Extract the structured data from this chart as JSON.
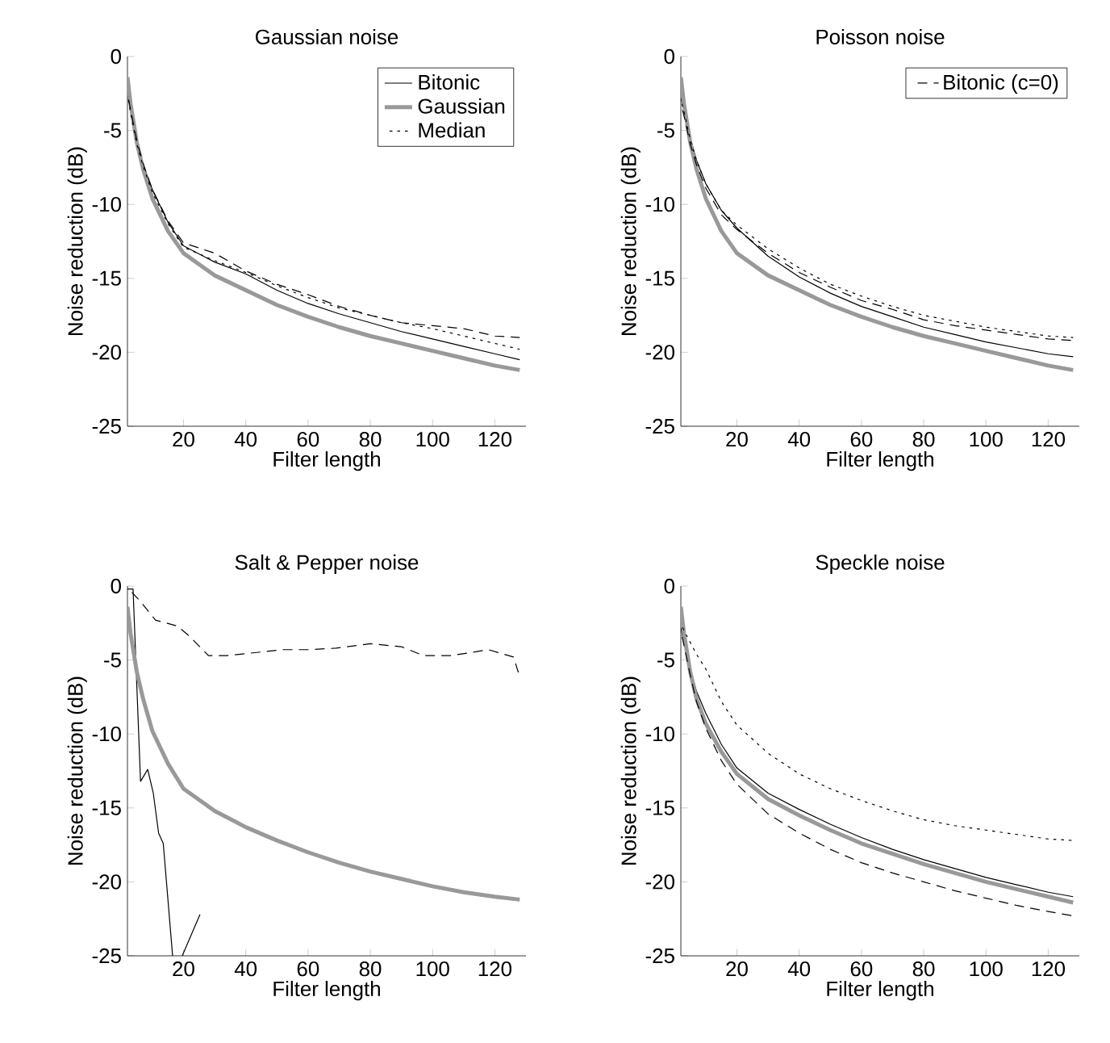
{
  "chart_data": [
    {
      "type": "line",
      "title": "Gaussian noise",
      "xlabel": "Filter length",
      "ylabel": "Noise reduction (dB)",
      "xlim": [
        2,
        130
      ],
      "ylim": [
        -25,
        0
      ],
      "xticks": [
        20,
        40,
        60,
        80,
        100,
        120
      ],
      "yticks": [
        -25,
        -20,
        -15,
        -10,
        -5,
        0
      ],
      "legend": "top right",
      "series": [
        {
          "name": "Bitonic",
          "color": "#000000",
          "line_style": "solid",
          "x": [
            2,
            3,
            5,
            7,
            10,
            15,
            20,
            30,
            40,
            50,
            60,
            70,
            80,
            90,
            100,
            110,
            120,
            128
          ],
          "values": [
            -2.5,
            -3.6,
            -5.8,
            -7.3,
            -9.0,
            -11.2,
            -12.8,
            -13.9,
            -14.7,
            -15.8,
            -16.7,
            -17.4,
            -18.0,
            -18.6,
            -19.1,
            -19.6,
            -20.1,
            -20.5
          ]
        },
        {
          "name": "Gaussian",
          "color": "#999999",
          "line_style": "solid",
          "x": [
            2,
            3,
            5,
            7,
            10,
            15,
            20,
            30,
            40,
            50,
            60,
            70,
            80,
            90,
            100,
            110,
            120,
            128
          ],
          "values": [
            -1.4,
            -3.2,
            -5.8,
            -7.6,
            -9.6,
            -11.8,
            -13.3,
            -14.8,
            -15.8,
            -16.8,
            -17.6,
            -18.3,
            -18.9,
            -19.4,
            -19.9,
            -20.4,
            -20.9,
            -21.2
          ]
        },
        {
          "name": "Median",
          "color": "#000000",
          "line_style": "dotted",
          "x": [
            2,
            3,
            5,
            7,
            10,
            15,
            20,
            30,
            40,
            50,
            60,
            70,
            80,
            90,
            100,
            110,
            120,
            128
          ],
          "values": [
            -2.6,
            -3.8,
            -5.9,
            -7.4,
            -9.2,
            -11.3,
            -12.9,
            -13.8,
            -14.6,
            -15.5,
            -16.3,
            -17.0,
            -17.5,
            -18.0,
            -18.4,
            -18.9,
            -19.4,
            -19.8
          ]
        },
        {
          "color": "#000000",
          "line_style": "dashed",
          "x": [
            2,
            3,
            5,
            7,
            10,
            15,
            20,
            30,
            40,
            50,
            60,
            70,
            80,
            90,
            100,
            110,
            120,
            128
          ],
          "values": [
            -2.5,
            -3.6,
            -5.7,
            -7.2,
            -9.0,
            -11.1,
            -12.6,
            -13.3,
            -14.5,
            -15.4,
            -16.1,
            -16.9,
            -17.5,
            -18.0,
            -18.2,
            -18.4,
            -18.9,
            -19.0
          ]
        }
      ]
    },
    {
      "type": "line",
      "title": "Poisson noise",
      "xlabel": "Filter length",
      "ylabel": "Noise reduction (dB)",
      "xlim": [
        2,
        130
      ],
      "ylim": [
        -25,
        0
      ],
      "xticks": [
        20,
        40,
        60,
        80,
        100,
        120
      ],
      "yticks": [
        -25,
        -20,
        -15,
        -10,
        -5,
        0
      ],
      "legend": "top right",
      "series": [
        {
          "color": "#000000",
          "line_style": "solid",
          "x": [
            2,
            3,
            5,
            7,
            10,
            15,
            20,
            30,
            40,
            50,
            60,
            70,
            80,
            90,
            100,
            110,
            120,
            128
          ],
          "values": [
            -2.8,
            -3.6,
            -5.5,
            -7.0,
            -8.6,
            -10.4,
            -11.6,
            -13.5,
            -14.9,
            -16.0,
            -16.9,
            -17.6,
            -18.3,
            -18.8,
            -19.3,
            -19.7,
            -20.1,
            -20.3
          ]
        },
        {
          "color": "#999999",
          "line_style": "solid",
          "x": [
            2,
            3,
            5,
            7,
            10,
            15,
            20,
            30,
            40,
            50,
            60,
            70,
            80,
            90,
            100,
            110,
            120,
            128
          ],
          "values": [
            -1.4,
            -3.2,
            -5.8,
            -7.6,
            -9.6,
            -11.8,
            -13.3,
            -14.8,
            -15.8,
            -16.8,
            -17.6,
            -18.3,
            -18.9,
            -19.4,
            -19.9,
            -20.4,
            -20.9,
            -21.2
          ]
        },
        {
          "color": "#000000",
          "line_style": "dotted",
          "x": [
            2,
            3,
            5,
            7,
            10,
            15,
            20,
            30,
            40,
            50,
            60,
            70,
            80,
            90,
            100,
            110,
            120,
            128
          ],
          "values": [
            -2.9,
            -3.7,
            -5.6,
            -7.0,
            -8.6,
            -10.4,
            -11.4,
            -13.0,
            -14.3,
            -15.4,
            -16.2,
            -16.9,
            -17.5,
            -17.9,
            -18.3,
            -18.6,
            -18.9,
            -19.0
          ]
        },
        {
          "name": "Bitonic (c=0)",
          "color": "#000000",
          "line_style": "dashed",
          "x": [
            2,
            3,
            5,
            7,
            10,
            15,
            20,
            30,
            40,
            50,
            60,
            70,
            80,
            90,
            100,
            110,
            120,
            128
          ],
          "values": [
            -3.2,
            -4.0,
            -5.9,
            -7.3,
            -8.9,
            -10.7,
            -11.7,
            -13.3,
            -14.6,
            -15.6,
            -16.5,
            -17.1,
            -17.8,
            -18.2,
            -18.5,
            -18.8,
            -19.1,
            -19.2
          ]
        }
      ]
    },
    {
      "type": "line",
      "title": "Salt & Pepper noise",
      "xlabel": "Filter length",
      "ylabel": "Noise reduction (dB)",
      "xlim": [
        2,
        130
      ],
      "ylim": [
        -25,
        0
      ],
      "xticks": [
        20,
        40,
        60,
        80,
        100,
        120
      ],
      "yticks": [
        -25,
        -20,
        -15,
        -10,
        -5,
        0
      ],
      "series": [
        {
          "color": "#000000",
          "line_style": "solid",
          "x": [
            2,
            3.8,
            6.2,
            8.5,
            10.3,
            12,
            13.5,
            16.5,
            18,
            19.6,
            25.3
          ],
          "values": [
            -0.2,
            -0.2,
            -13.2,
            -12.4,
            -14.0,
            -16.7,
            -17.4,
            -25,
            null,
            -25,
            -22.2
          ]
        },
        {
          "color": "#999999",
          "line_style": "solid",
          "x": [
            2,
            3,
            5,
            7,
            10,
            15,
            20,
            30,
            40,
            50,
            60,
            70,
            80,
            90,
            100,
            110,
            120,
            128
          ],
          "values": [
            -1.4,
            -3.2,
            -5.8,
            -7.6,
            -9.8,
            -12.0,
            -13.7,
            -15.2,
            -16.3,
            -17.2,
            -18.0,
            -18.7,
            -19.3,
            -19.8,
            -20.3,
            -20.7,
            -21.0,
            -21.2
          ]
        },
        {
          "color": "#000000",
          "line_style": "dashed",
          "x": [
            2,
            6,
            11,
            18,
            22,
            28,
            34,
            43,
            52,
            60,
            69,
            80,
            90,
            97,
            106,
            118,
            126,
            127.5,
            128
          ],
          "values": [
            -0.1,
            -1.0,
            -2.3,
            -2.7,
            -3.4,
            -4.7,
            -4.7,
            -4.5,
            -4.3,
            -4.3,
            -4.2,
            -3.9,
            -4.1,
            -4.7,
            -4.7,
            -4.3,
            -4.8,
            -5.8,
            -5.8
          ]
        }
      ]
    },
    {
      "type": "line",
      "title": "Speckle noise",
      "xlabel": "Filter length",
      "ylabel": "Noise reduction (dB)",
      "xlim": [
        2,
        130
      ],
      "ylim": [
        -25,
        0
      ],
      "xticks": [
        20,
        40,
        60,
        80,
        100,
        120
      ],
      "yticks": [
        -25,
        -20,
        -15,
        -10,
        -5,
        0
      ],
      "series": [
        {
          "color": "#000000",
          "line_style": "solid",
          "x": [
            2,
            3,
            5,
            7,
            10,
            15,
            20,
            30,
            40,
            50,
            60,
            70,
            80,
            90,
            100,
            110,
            120,
            128
          ],
          "values": [
            -2.8,
            -3.8,
            -5.6,
            -7.1,
            -8.6,
            -10.7,
            -12.3,
            -14.0,
            -15.1,
            -16.1,
            -17.0,
            -17.8,
            -18.5,
            -19.1,
            -19.7,
            -20.2,
            -20.7,
            -21.0
          ]
        },
        {
          "color": "#999999",
          "line_style": "solid",
          "x": [
            2,
            3,
            5,
            7,
            10,
            15,
            20,
            30,
            40,
            50,
            60,
            70,
            80,
            90,
            100,
            110,
            120,
            128
          ],
          "values": [
            -1.4,
            -3.2,
            -5.8,
            -7.6,
            -9.3,
            -11.2,
            -12.7,
            -14.4,
            -15.5,
            -16.5,
            -17.4,
            -18.1,
            -18.8,
            -19.4,
            -20.0,
            -20.5,
            -21.0,
            -21.4
          ]
        },
        {
          "color": "#000000",
          "line_style": "dotted",
          "x": [
            2,
            3,
            5,
            7,
            10,
            15,
            20,
            30,
            40,
            50,
            60,
            70,
            80,
            90,
            100,
            110,
            120,
            128
          ],
          "values": [
            -2.5,
            -3.0,
            -3.8,
            -4.6,
            -5.6,
            -7.8,
            -9.4,
            -11.3,
            -12.7,
            -13.7,
            -14.5,
            -15.2,
            -15.8,
            -16.2,
            -16.5,
            -16.8,
            -17.1,
            -17.2
          ]
        },
        {
          "color": "#000000",
          "line_style": "dashed",
          "x": [
            2,
            3,
            5,
            7,
            10,
            15,
            20,
            30,
            40,
            50,
            60,
            70,
            80,
            90,
            100,
            110,
            120,
            128
          ],
          "values": [
            -3.0,
            -4.0,
            -6.0,
            -7.8,
            -9.6,
            -11.8,
            -13.4,
            -15.4,
            -16.7,
            -17.8,
            -18.7,
            -19.4,
            -20.0,
            -20.6,
            -21.1,
            -21.6,
            -22.0,
            -22.3
          ]
        }
      ]
    }
  ]
}
